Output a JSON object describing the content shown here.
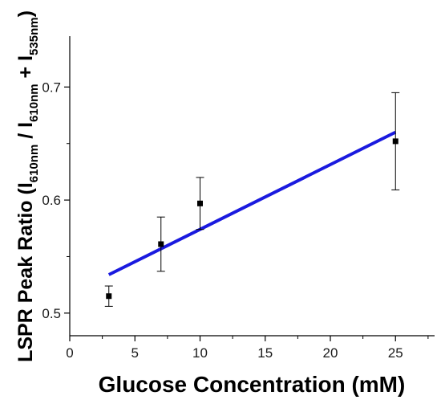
{
  "chart_data": {
    "type": "scatter",
    "title": "",
    "xlabel": "Glucose Concentration (mM)",
    "ylabel": {
      "prefix": "LSPR Peak Ratio (I",
      "sub1": "610nm",
      "mid": " / I",
      "sub2": "610nm",
      "plus": " + I",
      "sub3": "535nm",
      "suffix": ")"
    },
    "xlim": [
      0,
      28
    ],
    "ylim": [
      0.48,
      0.745
    ],
    "x_ticks": [
      0,
      5,
      10,
      15,
      20,
      25
    ],
    "y_ticks": [
      0.5,
      0.6,
      0.7
    ],
    "x_tick_labels": [
      "0",
      "5",
      "10",
      "15",
      "20",
      "25"
    ],
    "y_tick_labels": [
      "0.5",
      "0.6",
      "0.7"
    ],
    "grid": false,
    "series": [
      {
        "type": "scatter",
        "marker": "square",
        "color": "#000000",
        "x": [
          3,
          7,
          10,
          25
        ],
        "y": [
          0.515,
          0.561,
          0.597,
          0.652
        ],
        "error": [
          0.009,
          0.024,
          0.023,
          0.043
        ]
      },
      {
        "type": "line",
        "style": "linear-fit",
        "color": "#1a1adf",
        "x": [
          3,
          25
        ],
        "y": [
          0.534,
          0.66
        ]
      }
    ]
  }
}
